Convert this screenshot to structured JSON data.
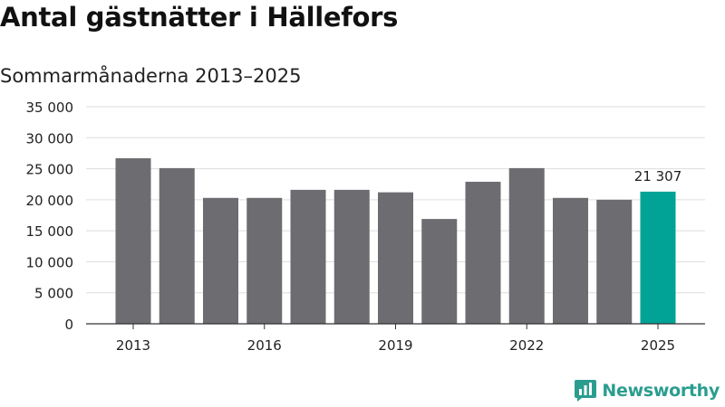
{
  "chart_data": {
    "type": "bar",
    "title": "Antal gästnätter i Hällefors",
    "subtitle": "Sommarmånaderna 2013–2025",
    "categories": [
      "2013",
      "2014",
      "2015",
      "2016",
      "2017",
      "2018",
      "2019",
      "2020",
      "2021",
      "2022",
      "2023",
      "2024",
      "2025"
    ],
    "x_tick_labels": [
      "2013",
      "2016",
      "2019",
      "2022",
      "2025"
    ],
    "values": [
      26700,
      25100,
      20300,
      20300,
      21600,
      21600,
      21200,
      16900,
      22900,
      25100,
      20300,
      20000,
      21307
    ],
    "ylim": [
      0,
      35000
    ],
    "y_ticks": [
      0,
      5000,
      10000,
      15000,
      20000,
      25000,
      30000,
      35000
    ],
    "y_tick_labels": [
      "0",
      "5 000",
      "10 000",
      "15 000",
      "20 000",
      "25 000",
      "30 000",
      "35 000"
    ],
    "grid": true,
    "highlight_index": 12,
    "data_labels": [
      {
        "index": 12,
        "text": "21 307"
      }
    ],
    "colors": {
      "bar": "#6d6c70",
      "highlight": "#00a396",
      "grid": "#dddddd",
      "axis": "#333333"
    }
  },
  "brand": {
    "name": "Newsworthy",
    "color": "#2a9d8f"
  }
}
